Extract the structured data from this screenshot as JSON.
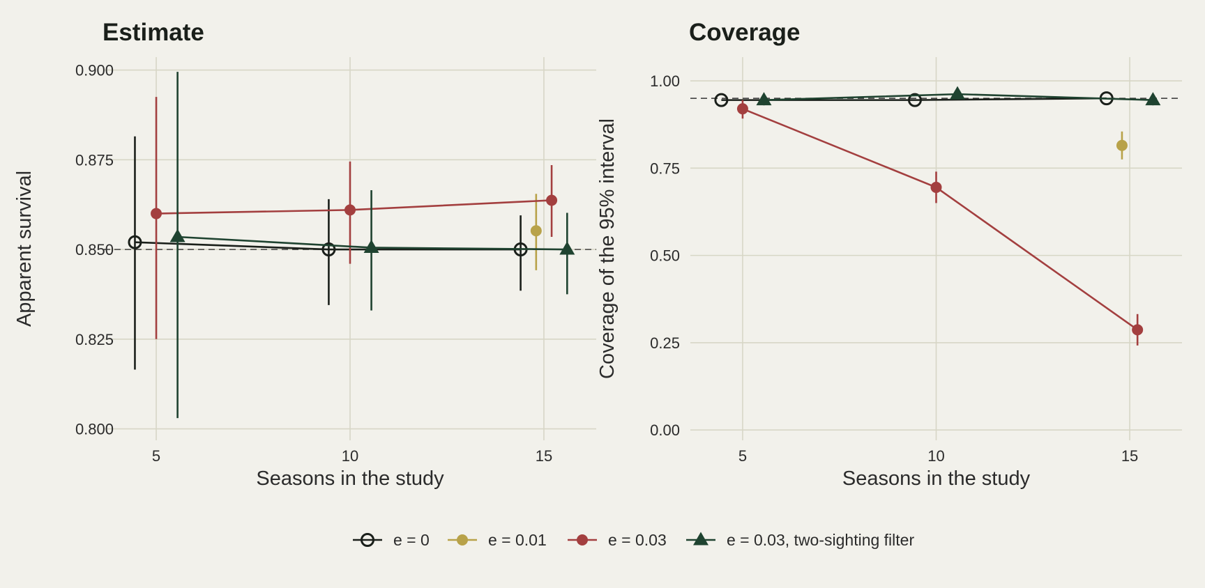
{
  "chart_data": [
    {
      "type": "line",
      "title": "Estimate",
      "xlabel": "Seasons in the study",
      "ylabel": "Apparent survival",
      "xlim": [
        3.65,
        16.35
      ],
      "ylim": [
        0.7968,
        0.9036
      ],
      "xticks": [
        5,
        10,
        15
      ],
      "yticks": [
        0.8,
        0.825,
        0.85,
        0.875,
        0.9
      ],
      "ytick_labels": [
        "0.800",
        "0.825",
        "0.850",
        "0.875",
        "0.900"
      ],
      "reference_line": 0.85,
      "grid": true,
      "series": [
        {
          "name": "e = 0",
          "points": [
            {
              "x": 4.45,
              "y": 0.852,
              "lo": 0.8165,
              "hi": 0.8815
            },
            {
              "x": 9.45,
              "y": 0.85,
              "lo": 0.8345,
              "hi": 0.864
            },
            {
              "x": 14.4,
              "y": 0.85,
              "lo": 0.8385,
              "hi": 0.8595
            }
          ]
        },
        {
          "name": "e = 0.01",
          "points": [
            {
              "x": 14.8,
              "y": 0.8552,
              "lo": 0.8442,
              "hi": 0.8655
            }
          ]
        },
        {
          "name": "e = 0.03",
          "points": [
            {
              "x": 5.0,
              "y": 0.86,
              "lo": 0.825,
              "hi": 0.8925
            },
            {
              "x": 10.0,
              "y": 0.861,
              "lo": 0.846,
              "hi": 0.8745
            },
            {
              "x": 15.2,
              "y": 0.8637,
              "lo": 0.8535,
              "hi": 0.8735
            }
          ]
        },
        {
          "name": "e = 0.03, two-sighting filter",
          "points": [
            {
              "x": 5.55,
              "y": 0.8535,
              "lo": 0.803,
              "hi": 0.8995
            },
            {
              "x": 10.55,
              "y": 0.8505,
              "lo": 0.833,
              "hi": 0.8665
            },
            {
              "x": 15.6,
              "y": 0.85,
              "lo": 0.8375,
              "hi": 0.8602
            }
          ]
        }
      ]
    },
    {
      "type": "line",
      "title": "Coverage",
      "xlabel": "Seasons in the study",
      "ylabel": "Coverage of the 95% interval",
      "xlim": [
        3.65,
        16.35
      ],
      "ylim": [
        -0.0296,
        1.068
      ],
      "xticks": [
        5,
        10,
        15
      ],
      "yticks": [
        0.0,
        0.25,
        0.5,
        0.75,
        1.0
      ],
      "ytick_labels": [
        "0.00",
        "0.25",
        "0.50",
        "0.75",
        "1.00"
      ],
      "reference_line": 0.95,
      "grid": true,
      "series": [
        {
          "name": "e = 0",
          "points": [
            {
              "x": 4.45,
              "y": 0.945,
              "lo": 0.945,
              "hi": 0.945
            },
            {
              "x": 9.45,
              "y": 0.945,
              "lo": 0.945,
              "hi": 0.945
            },
            {
              "x": 14.4,
              "y": 0.95,
              "lo": 0.95,
              "hi": 0.95
            }
          ]
        },
        {
          "name": "e = 0.01",
          "points": [
            {
              "x": 14.8,
              "y": 0.815,
              "lo": 0.775,
              "hi": 0.855
            }
          ]
        },
        {
          "name": "e = 0.03",
          "points": [
            {
              "x": 5.0,
              "y": 0.92,
              "lo": 0.892,
              "hi": 0.945
            },
            {
              "x": 10.0,
              "y": 0.695,
              "lo": 0.65,
              "hi": 0.74
            },
            {
              "x": 15.2,
              "y": 0.287,
              "lo": 0.242,
              "hi": 0.332
            }
          ]
        },
        {
          "name": "e = 0.03, two-sighting filter",
          "points": [
            {
              "x": 5.55,
              "y": 0.945,
              "lo": 0.93,
              "hi": 0.96
            },
            {
              "x": 10.55,
              "y": 0.962,
              "lo": 0.95,
              "hi": 0.975
            },
            {
              "x": 15.6,
              "y": 0.945,
              "lo": 0.93,
              "hi": 0.96
            }
          ]
        }
      ]
    }
  ],
  "legend": {
    "placement": "bottom",
    "items": [
      {
        "label": "e = 0",
        "color": "#1a1f1a",
        "marker": "open-circle"
      },
      {
        "label": "e = 0.01",
        "color": "#b8a249",
        "marker": "circle"
      },
      {
        "label": "e = 0.03",
        "color": "#a33f3f",
        "marker": "circle"
      },
      {
        "label": "e = 0.03, two-sighting filter",
        "color": "#1f4330",
        "marker": "triangle"
      }
    ]
  },
  "colors": {
    "background": "#f2f1eb",
    "grid": "#d7d6c6"
  }
}
